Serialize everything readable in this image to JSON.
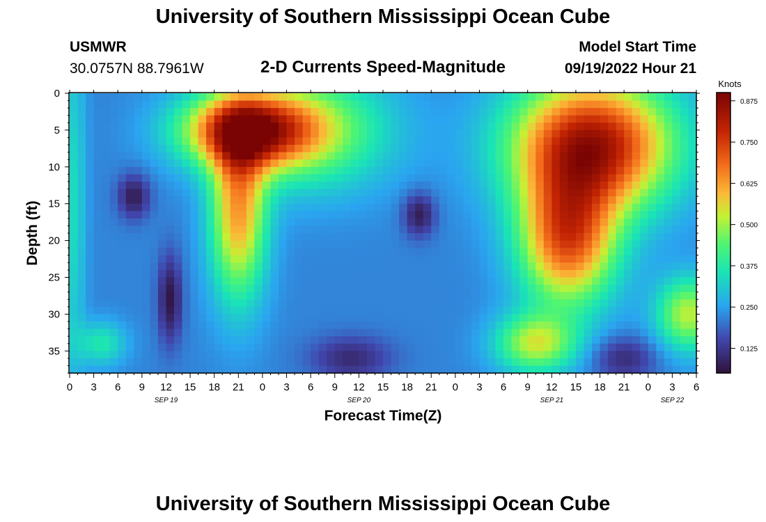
{
  "header": {
    "title": "University of Southern Mississippi Ocean Cube",
    "station": "USMWR",
    "coords": "30.0757N  88.7961W",
    "plot_title": "2-D Currents Speed-Magnitude",
    "model_start_label": "Model Start Time",
    "model_start_value": "09/19/2022 Hour 21"
  },
  "footer": {
    "title": "University of Southern Mississippi Ocean Cube"
  },
  "chart_data": {
    "type": "heatmap",
    "title": "2-D Currents Speed-Magnitude",
    "xlabel": "Forecast Time(Z)",
    "ylabel": "Depth (ft)",
    "colorbar_label": "Knots",
    "x_tick_labels": [
      "0",
      "3",
      "6",
      "9",
      "12",
      "15",
      "18",
      "21",
      "0",
      "3",
      "6",
      "9",
      "12",
      "15",
      "18",
      "21",
      "0",
      "3",
      "6",
      "9",
      "12",
      "15",
      "18",
      "21",
      "0",
      "3",
      "6"
    ],
    "date_labels": [
      {
        "text": "SEP 19",
        "hour": 12
      },
      {
        "text": "SEP 20",
        "hour": 36
      },
      {
        "text": "SEP 21",
        "hour": 60
      },
      {
        "text": "SEP 22",
        "hour": 75
      }
    ],
    "y_ticks": [
      0,
      5,
      10,
      15,
      20,
      25,
      30,
      35
    ],
    "xlim": [
      0,
      78
    ],
    "ylim": [
      0,
      38
    ],
    "colorbar_ticks": [
      "0.125",
      "0.250",
      "0.375",
      "0.500",
      "0.625",
      "0.750",
      "0.875"
    ],
    "colorbar_range": [
      0.05,
      0.9
    ],
    "colors": {
      "low": "#30123b",
      "mid_low": "#2aa5f0",
      "mid": "#4ff572",
      "mid_high": "#f89a2a",
      "high": "#7a0403"
    }
  }
}
